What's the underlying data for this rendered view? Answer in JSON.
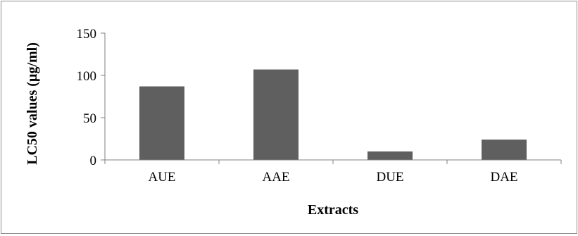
{
  "chart_data": {
    "type": "bar",
    "title": "",
    "xlabel": "Extracts",
    "ylabel": "LC50 values (µg/ml)",
    "categories": [
      "AUE",
      "AAE",
      "DUE",
      "DAE"
    ],
    "values": [
      87,
      107,
      10,
      24
    ],
    "ylim": [
      0,
      150
    ],
    "yticks": [
      0,
      50,
      100,
      150
    ],
    "grid": false,
    "legend": "none",
    "bar_color": "#5f5f5f",
    "axis_color": "#808080"
  }
}
